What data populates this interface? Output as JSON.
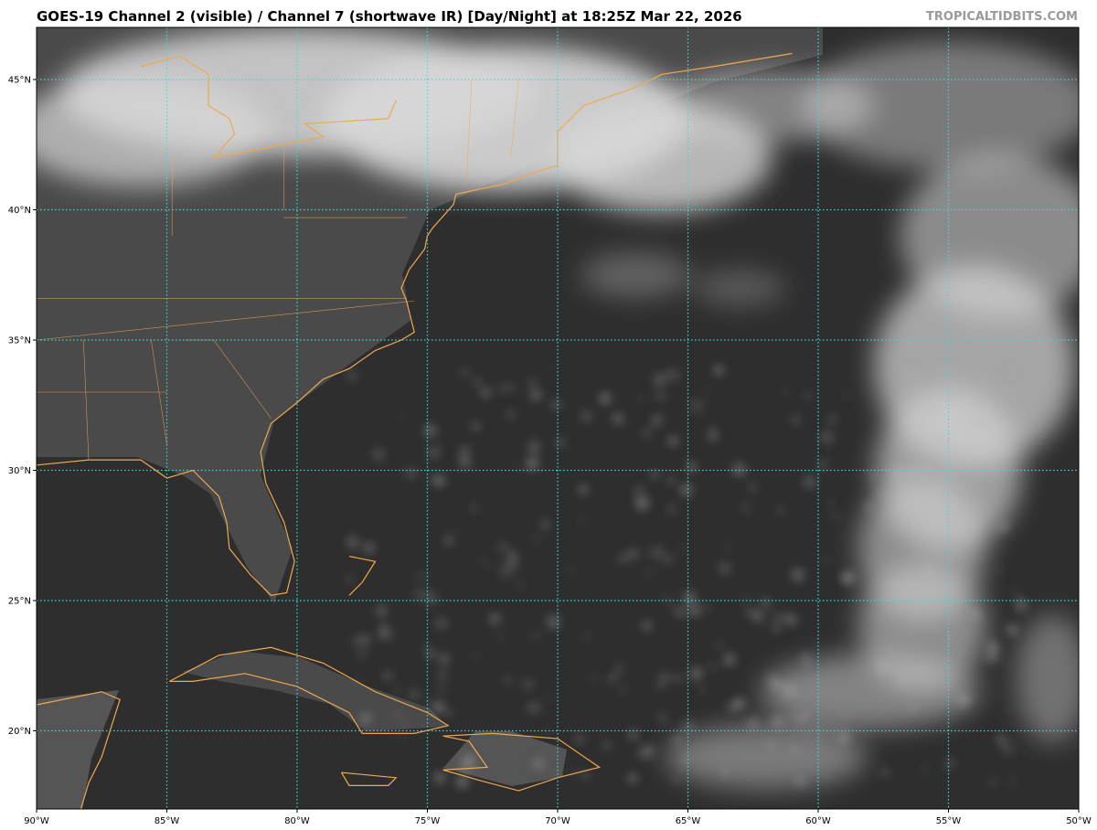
{
  "header": {
    "title": "GOES-19 Channel 2 (visible) / Channel 7 (shortwave IR) [Day/Night] at 18:25Z Mar 22, 2026",
    "credit": "TROPICALTIDBITS.COM"
  },
  "map": {
    "extent": {
      "lon_min": -90,
      "lon_max": -50,
      "lat_min": 17,
      "lat_max": 47
    },
    "x_ticks": [
      {
        "lon": -90,
        "label": "90°W"
      },
      {
        "lon": -85,
        "label": "85°W"
      },
      {
        "lon": -80,
        "label": "80°W"
      },
      {
        "lon": -75,
        "label": "75°W"
      },
      {
        "lon": -70,
        "label": "70°W"
      },
      {
        "lon": -65,
        "label": "65°W"
      },
      {
        "lon": -60,
        "label": "60°W"
      },
      {
        "lon": -55,
        "label": "55°W"
      },
      {
        "lon": -50,
        "label": "50°W"
      }
    ],
    "y_ticks": [
      {
        "lat": 45,
        "label": "45°N"
      },
      {
        "lat": 40,
        "label": "40°N"
      },
      {
        "lat": 35,
        "label": "35°N"
      },
      {
        "lat": 30,
        "label": "30°N"
      },
      {
        "lat": 25,
        "label": "25°N"
      },
      {
        "lat": 20,
        "label": "20°N"
      }
    ],
    "colors": {
      "background": "#2e2e2e",
      "coastline": "#f0a850",
      "gridline": "#40d8d8",
      "cloud": "#d8d8d8"
    }
  }
}
